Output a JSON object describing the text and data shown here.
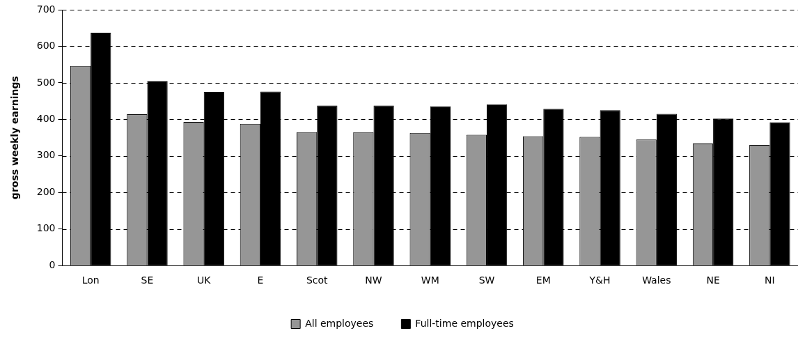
{
  "chart_data": {
    "type": "bar",
    "ylabel": "gross weekly earnings",
    "categories": [
      "Lon",
      "SE",
      "UK",
      "E",
      "Scot",
      "NW",
      "WM",
      "SW",
      "EM",
      "Y&H",
      "Wales",
      "NE",
      "NI"
    ],
    "series": [
      {
        "name": "All employees",
        "color": "#969696",
        "values": [
          546,
          414,
          393,
          388,
          365,
          365,
          363,
          358,
          354,
          352,
          345,
          334,
          330
        ]
      },
      {
        "name": "Full-time employees",
        "color": "#000000",
        "values": [
          637,
          505,
          475,
          476,
          438,
          438,
          436,
          441,
          429,
          425,
          415,
          402,
          392
        ]
      }
    ],
    "ylim": [
      0,
      700
    ],
    "yticks": [
      0,
      100,
      200,
      300,
      400,
      500,
      600,
      700
    ],
    "grid": "y",
    "legend": "bottom"
  }
}
